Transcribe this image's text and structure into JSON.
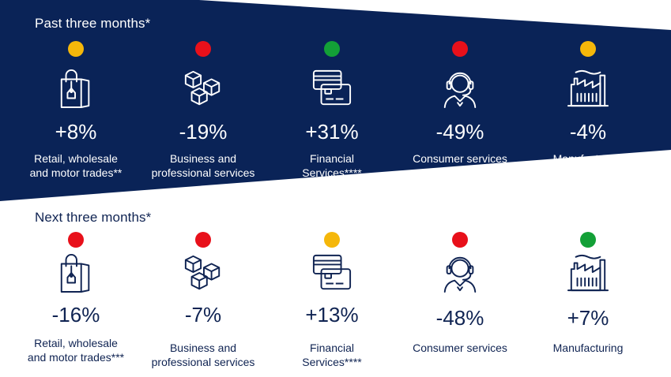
{
  "colors": {
    "navy": "#0a2357",
    "amber": "#f5b70a",
    "red": "#e8101a",
    "green": "#13a037"
  },
  "past": {
    "title": "Past three months*",
    "items": [
      {
        "status": "amber",
        "icon": "shopping-bag-icon",
        "value": "+8%",
        "label_line1": "Retail, wholesale",
        "label_line2": "and motor trades**"
      },
      {
        "status": "red",
        "icon": "boxes-icon",
        "value": "-19%",
        "label_line1": "Business and",
        "label_line2": "professional services"
      },
      {
        "status": "green",
        "icon": "credit-cards-icon",
        "value": "+31%",
        "label_line1": "Financial",
        "label_line2": "Services****"
      },
      {
        "status": "red",
        "icon": "headset-agent-icon",
        "value": "-49%",
        "label_line1": "Consumer services",
        "label_line2": ""
      },
      {
        "status": "amber",
        "icon": "factory-icon",
        "value": "-4%",
        "label_line1": "Manufacturing",
        "label_line2": ""
      }
    ]
  },
  "next": {
    "title": "Next three months*",
    "items": [
      {
        "status": "red",
        "icon": "shopping-bag-icon",
        "value": "-16%",
        "label_line1": "Retail, wholesale",
        "label_line2": "and motor trades***"
      },
      {
        "status": "red",
        "icon": "boxes-icon",
        "value": "-7%",
        "label_line1": "Business and",
        "label_line2": "professional services"
      },
      {
        "status": "amber",
        "icon": "credit-cards-icon",
        "value": "+13%",
        "label_line1": "Financial",
        "label_line2": "Services****"
      },
      {
        "status": "red",
        "icon": "headset-agent-icon",
        "value": "-48%",
        "label_line1": "Consumer services",
        "label_line2": ""
      },
      {
        "status": "green",
        "icon": "factory-icon",
        "value": "+7%",
        "label_line1": "Manufacturing",
        "label_line2": ""
      }
    ]
  }
}
